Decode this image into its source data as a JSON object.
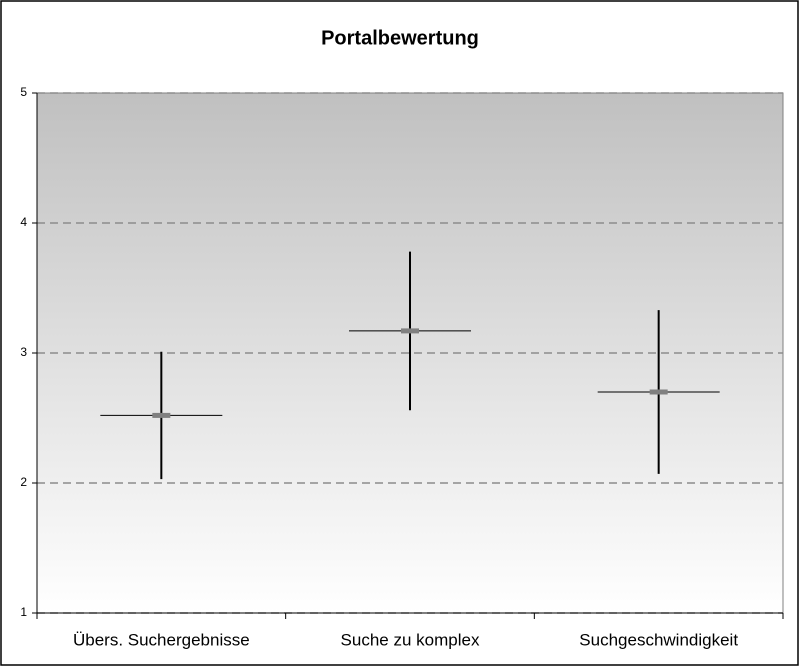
{
  "chart_data": {
    "type": "errorbar",
    "title": "Portalbewertung",
    "categories": [
      "Übers. Suchergebnisse",
      "Suche zu komplex",
      "Suchgeschwindigkeit"
    ],
    "values": [
      2.52,
      3.17,
      2.7
    ],
    "errors": [
      0.49,
      0.61,
      0.63
    ],
    "color": "#808080",
    "ylim": [
      1,
      5
    ],
    "yticks": [
      1,
      2,
      3,
      4,
      5
    ],
    "grid": true
  }
}
